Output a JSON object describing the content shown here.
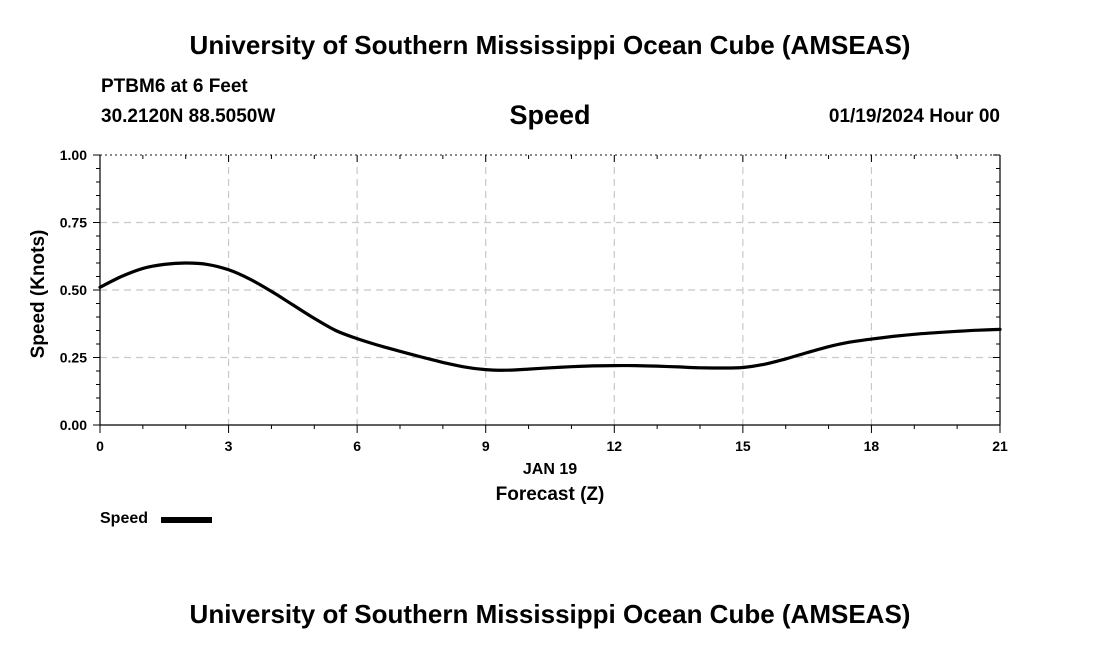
{
  "header": {
    "title": "University of Southern Mississippi Ocean Cube (AMSEAS)",
    "station": "PTBM6 at 6 Feet",
    "coordinates": "30.2120N  88.5050W",
    "datetime": "01/19/2024 Hour 00"
  },
  "footer": {
    "title": "University of Southern Mississippi Ocean Cube (AMSEAS)"
  },
  "chart_data": {
    "type": "line",
    "title": "Speed",
    "xlabel_date": "JAN 19",
    "xlabel": "Forecast (Z)",
    "ylabel": "Speed (Knots)",
    "xlim": [
      0,
      21
    ],
    "ylim": [
      0,
      1
    ],
    "x_ticks": [
      0,
      3,
      6,
      9,
      12,
      15,
      18,
      21
    ],
    "x_tick_labels": [
      "0",
      "3",
      "6",
      "9",
      "12",
      "15",
      "18",
      "21"
    ],
    "y_ticks": [
      0,
      0.25,
      0.5,
      0.75,
      1.0
    ],
    "y_tick_labels": [
      "0.00",
      "0.25",
      "0.50",
      "0.75",
      "1.00"
    ],
    "grid": true,
    "legend": "bottom-left",
    "series": [
      {
        "name": "Speed",
        "color": "#000000",
        "x": [
          0,
          0.5,
          1,
          1.5,
          2,
          2.5,
          3,
          3.5,
          4,
          4.5,
          5,
          5.5,
          6,
          6.5,
          7,
          7.5,
          8,
          8.5,
          9,
          9.5,
          10,
          10.5,
          11,
          11.5,
          12,
          12.5,
          13,
          13.5,
          14,
          14.5,
          15,
          15.5,
          16,
          16.5,
          17,
          17.5,
          18,
          18.5,
          19,
          19.5,
          20,
          20.5,
          21
        ],
        "values": [
          0.51,
          0.55,
          0.58,
          0.595,
          0.6,
          0.595,
          0.575,
          0.54,
          0.495,
          0.445,
          0.395,
          0.35,
          0.32,
          0.295,
          0.273,
          0.252,
          0.232,
          0.215,
          0.205,
          0.203,
          0.207,
          0.212,
          0.216,
          0.219,
          0.22,
          0.22,
          0.218,
          0.215,
          0.212,
          0.211,
          0.213,
          0.225,
          0.245,
          0.268,
          0.29,
          0.307,
          0.318,
          0.328,
          0.336,
          0.342,
          0.347,
          0.351,
          0.354
        ]
      }
    ]
  }
}
